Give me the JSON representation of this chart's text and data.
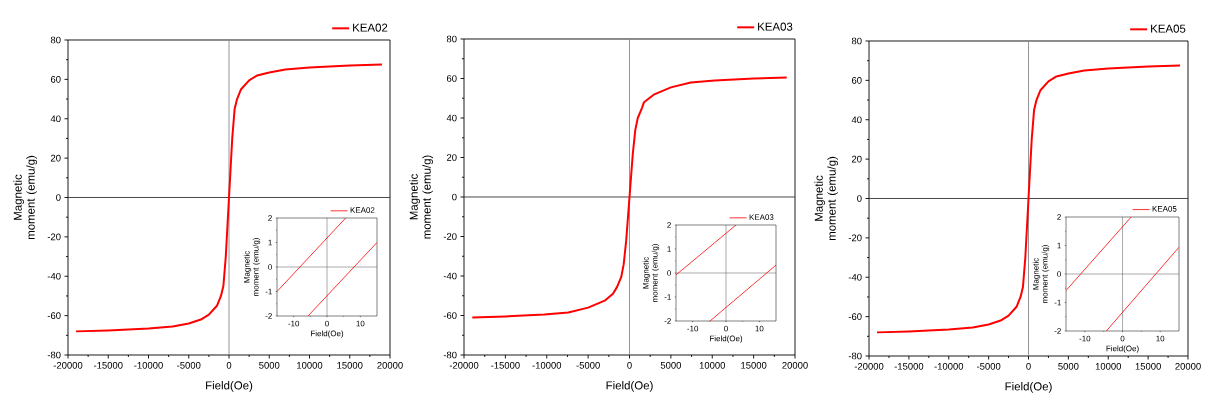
{
  "chart_data": [
    {
      "type": "line",
      "xlabel": "Field(Oe)",
      "ylabel": "Magnetic moment (emu/g)",
      "xlim": [
        -20000,
        20000
      ],
      "ylim": [
        -80,
        80
      ],
      "xticks": [
        -20000,
        -15000,
        -10000,
        -5000,
        0,
        5000,
        10000,
        15000,
        20000
      ],
      "yticks": [
        -80,
        -60,
        -40,
        -20,
        0,
        20,
        40,
        60,
        80
      ],
      "legend": "top right",
      "ref_lines": [
        {
          "axis": "x",
          "value": 0,
          "color": "#888888"
        },
        {
          "axis": "y",
          "value": 0,
          "color": "#333333"
        }
      ],
      "series": [
        {
          "name": "KEA02",
          "color": "#ff0000",
          "x": [
            -19000,
            -15000,
            -10000,
            -7000,
            -5000,
            -3500,
            -2500,
            -1500,
            -1000,
            -700,
            -400,
            -200,
            0,
            200,
            400,
            700,
            1000,
            1500,
            2500,
            3500,
            5000,
            7000,
            10000,
            15000,
            19000
          ],
          "values": [
            -68,
            -67.5,
            -66.5,
            -65.5,
            -64,
            -62,
            -59.5,
            -55,
            -50,
            -45,
            -30,
            -15,
            0,
            15,
            30,
            45,
            50,
            55,
            59.5,
            62,
            63.5,
            65,
            66,
            67,
            67.5
          ]
        }
      ]
    },
    {
      "type": "line",
      "xlabel": "Field(Oe)",
      "ylabel": "Magnetic moment (emu/g)",
      "xlim": [
        -15,
        15
      ],
      "ylim": [
        -2,
        2
      ],
      "xticks": [
        -10,
        0,
        10
      ],
      "yticks": [
        -2,
        -1,
        0,
        1,
        2
      ],
      "legend": "top right",
      "ref_lines": [
        {
          "axis": "x",
          "value": 0,
          "color": "#555555"
        },
        {
          "axis": "y",
          "value": 0,
          "color": "#555555"
        }
      ],
      "series": [
        {
          "name": "KEA02",
          "color": "#ff0000",
          "x": [
            -15,
            5.6
          ],
          "values": [
            -1.0,
            2
          ]
        },
        {
          "color": "#ff0000",
          "x": [
            -5.7,
            15
          ],
          "values": [
            -2,
            1.0
          ]
        }
      ]
    },
    {
      "type": "line",
      "xlabel": "Field(Oe)",
      "ylabel": "Magnetic moment (emu/g)",
      "xlim": [
        -20000,
        20000
      ],
      "ylim": [
        -80,
        80
      ],
      "xticks": [
        -20000,
        -15000,
        -10000,
        -5000,
        0,
        5000,
        10000,
        15000,
        20000
      ],
      "yticks": [
        -80,
        -60,
        -40,
        -20,
        0,
        20,
        40,
        60,
        80
      ],
      "legend": "top right",
      "ref_lines": [
        {
          "axis": "x",
          "value": 0,
          "color": "#888888"
        },
        {
          "axis": "y",
          "value": 0,
          "color": "#333333"
        }
      ],
      "series": [
        {
          "name": "KEA03",
          "color": "#ff0000",
          "x": [
            -19000,
            -15000,
            -10300,
            -7400,
            -5000,
            -3000,
            -2000,
            -1500,
            -1000,
            -700,
            -400,
            -200,
            0,
            200,
            400,
            700,
            1000,
            1500,
            1750,
            3000,
            5000,
            7400,
            10300,
            15000,
            19000
          ],
          "values": [
            -61,
            -60.5,
            -59.5,
            -58.5,
            -56,
            -52.5,
            -49,
            -45.5,
            -40.5,
            -34,
            -22,
            -11,
            0,
            11,
            22,
            34,
            40,
            45,
            48,
            52,
            55.5,
            58,
            59,
            60,
            60.5
          ]
        }
      ]
    },
    {
      "type": "line",
      "xlabel": "Field(Oe)",
      "ylabel": "Magnetic moment (emu/g)",
      "xlim": [
        -15,
        15
      ],
      "ylim": [
        -2,
        2
      ],
      "xticks": [
        -10,
        0,
        10
      ],
      "yticks": [
        -2,
        -1,
        0,
        1,
        2
      ],
      "legend": "top right",
      "ref_lines": [
        {
          "axis": "x",
          "value": 0,
          "color": "#555555"
        },
        {
          "axis": "y",
          "value": 0,
          "color": "#555555"
        }
      ],
      "series": [
        {
          "name": "KEA03",
          "color": "#ff0000",
          "x": [
            -15,
            3.0
          ],
          "values": [
            -0.08,
            2
          ]
        },
        {
          "color": "#ff0000",
          "x": [
            -4.8,
            15
          ],
          "values": [
            -2,
            0.33
          ]
        }
      ]
    },
    {
      "type": "line",
      "xlabel": "Field(Oe)",
      "ylabel": "Magnetic moment (emu/g)",
      "xlim": [
        -20000,
        20000
      ],
      "ylim": [
        -80,
        80
      ],
      "xticks": [
        -20000,
        -15000,
        -10000,
        -5000,
        0,
        5000,
        10000,
        15000,
        20000
      ],
      "yticks": [
        -80,
        -60,
        -40,
        -20,
        0,
        20,
        40,
        60,
        80
      ],
      "legend": "top right",
      "ref_lines": [
        {
          "axis": "x",
          "value": 0,
          "color": "#888888"
        },
        {
          "axis": "y",
          "value": 0,
          "color": "#333333"
        }
      ],
      "series": [
        {
          "name": "KEA05",
          "color": "#ff0000",
          "x": [
            -19000,
            -15000,
            -10000,
            -7000,
            -5000,
            -3500,
            -2500,
            -1500,
            -1000,
            -700,
            -400,
            -200,
            0,
            200,
            400,
            700,
            1000,
            1500,
            2500,
            3500,
            5000,
            7000,
            10000,
            15000,
            19000
          ],
          "values": [
            -68,
            -67.5,
            -66.5,
            -65.5,
            -64,
            -62,
            -59.5,
            -55,
            -50,
            -45,
            -30,
            -15,
            0,
            15,
            30,
            45,
            50,
            55,
            59.5,
            62,
            63.5,
            65,
            66,
            67,
            67.5
          ]
        }
      ]
    },
    {
      "type": "line",
      "xlabel": "Field(Oe)",
      "ylabel": "Magnetic moment (emu/g)",
      "xlim": [
        -15,
        15
      ],
      "ylim": [
        -2,
        2
      ],
      "xticks": [
        -10,
        0,
        10
      ],
      "yticks": [
        -2,
        -1,
        0,
        1,
        2
      ],
      "legend": "top right",
      "ref_lines": [
        {
          "axis": "x",
          "value": 0,
          "color": "#555555"
        },
        {
          "axis": "y",
          "value": 0,
          "color": "#555555"
        }
      ],
      "series": [
        {
          "name": "KEA05",
          "color": "#ff0000",
          "x": [
            -15,
            2.3
          ],
          "values": [
            -0.58,
            2
          ]
        },
        {
          "color": "#ff0000",
          "x": [
            -4.3,
            15
          ],
          "values": [
            -2,
            0.94
          ]
        }
      ]
    }
  ]
}
